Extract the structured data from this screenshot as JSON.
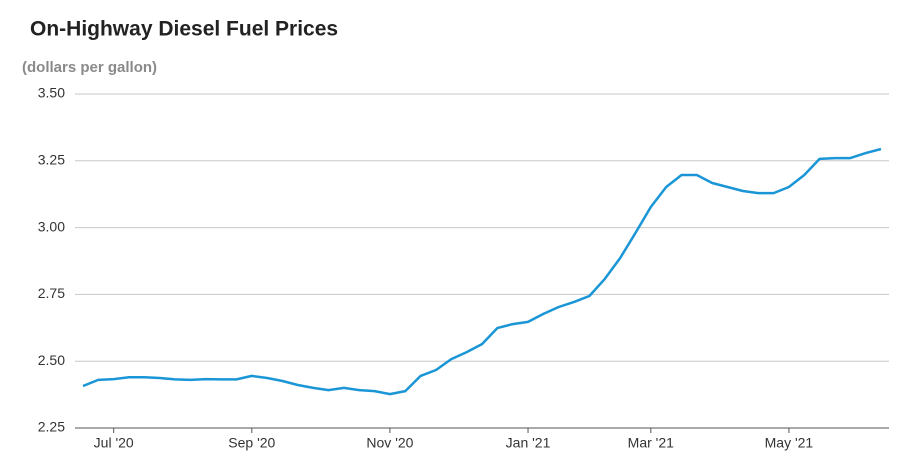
{
  "chart_data": {
    "type": "line",
    "title": "On-Highway Diesel Fuel Prices",
    "subtitle": "(dollars per gallon)",
    "categories": [
      null,
      null,
      "Jul '20",
      null,
      null,
      null,
      null,
      null,
      null,
      null,
      null,
      "Sep '20",
      null,
      null,
      null,
      null,
      null,
      null,
      null,
      null,
      "Nov '20",
      null,
      null,
      null,
      null,
      null,
      null,
      null,
      null,
      "Jan '21",
      null,
      null,
      null,
      null,
      null,
      null,
      null,
      "Mar '21",
      null,
      null,
      null,
      null,
      null,
      null,
      null,
      null,
      "May '21",
      null,
      null,
      null,
      null,
      null,
      null
    ],
    "values": [
      2.407,
      2.43,
      2.433,
      2.44,
      2.44,
      2.437,
      2.432,
      2.43,
      2.433,
      2.432,
      2.432,
      2.445,
      2.437,
      2.426,
      2.411,
      2.4,
      2.392,
      2.4,
      2.392,
      2.388,
      2.377,
      2.388,
      2.445,
      2.467,
      2.508,
      2.534,
      2.564,
      2.624,
      2.639,
      2.647,
      2.677,
      2.703,
      2.722,
      2.744,
      2.808,
      2.886,
      2.98,
      3.077,
      3.152,
      3.197,
      3.197,
      3.167,
      3.152,
      3.137,
      3.129,
      3.129,
      3.152,
      3.197,
      3.257,
      3.26,
      3.26,
      3.279,
      3.294
    ],
    "color": "#1a96d6",
    "ylim": [
      2.25,
      3.5
    ],
    "yticks": [
      {
        "value": 2.25,
        "label": "2.25"
      },
      {
        "value": 2.5,
        "label": "2.50"
      },
      {
        "value": 2.75,
        "label": "2.75"
      },
      {
        "value": 3,
        "label": "3.00"
      },
      {
        "value": 3.25,
        "label": "3.25"
      },
      {
        "value": 3.5,
        "label": "3.50"
      }
    ],
    "grid": true
  }
}
